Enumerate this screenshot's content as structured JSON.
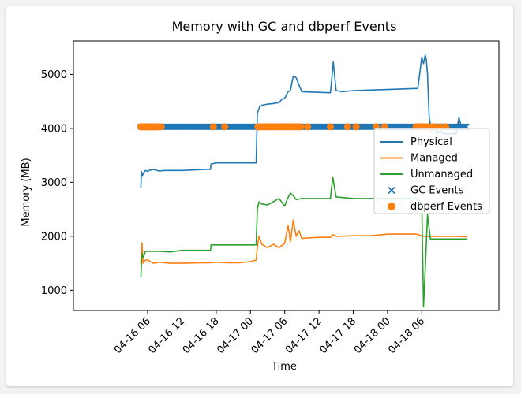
{
  "chart_data": {
    "type": "line",
    "title": "Memory with GC and dbperf Events",
    "xlabel": "Time",
    "ylabel": "Memory (MB)",
    "x_ticks": [
      "04-16 06",
      "04-16 12",
      "04-16 18",
      "04-17 00",
      "04-17 06",
      "04-17 12",
      "04-17 18",
      "04-18 00",
      "04-18 06"
    ],
    "y_ticks": [
      1000,
      2000,
      3000,
      4000,
      5000
    ],
    "xlim_hours": [
      -7.0,
      67.5
    ],
    "ylim": [
      625,
      5620
    ],
    "x_unit": "hours since 04-16 00",
    "legend_position": "center-right",
    "colors": {
      "Physical": "#1f77b4",
      "Managed": "#ff7f0e",
      "Unmanaged": "#2ca02c",
      "GC Events": "#1f77b4",
      "dbperf Events": "#ff7f0e"
    },
    "series": [
      {
        "name": "Physical",
        "x": [
          4.8,
          4.9,
          5.1,
          5.3,
          5.6,
          6.0,
          6.2,
          7.0,
          8.0,
          9.0,
          12.0,
          16.0,
          17.0,
          17.1,
          18.0,
          24.0,
          25.0,
          25.2,
          25.6,
          26.0,
          27.0,
          28.0,
          29.0,
          29.5,
          30.0,
          30.6,
          31.0,
          31.5,
          32.0,
          32.5,
          33.0,
          38.0,
          38.5,
          39.0,
          40.0,
          42.0,
          48.0,
          53.0,
          53.3,
          54.0,
          54.3,
          54.6,
          54.8,
          55.0,
          55.3,
          55.7,
          56.2,
          56.6,
          57.2,
          58.0,
          59.0,
          60.0,
          60.5,
          61.0,
          62.0
        ],
        "y": [
          2900,
          3200,
          3130,
          3180,
          3220,
          3200,
          3220,
          3240,
          3210,
          3220,
          3220,
          3240,
          3240,
          3340,
          3360,
          3360,
          3360,
          4280,
          4400,
          4430,
          4450,
          4460,
          4480,
          4540,
          4560,
          4680,
          4700,
          4970,
          4940,
          4800,
          4680,
          4660,
          5230,
          4700,
          4680,
          4700,
          4720,
          4740,
          4740,
          5320,
          5200,
          5360,
          5270,
          5000,
          4200,
          3950,
          4050,
          3900,
          3950,
          3900,
          3900,
          3900,
          4200,
          4000,
          4000
        ]
      },
      {
        "name": "Managed",
        "x": [
          4.8,
          5.0,
          5.2,
          5.6,
          6.0,
          7.0,
          8.0,
          10.0,
          12.0,
          16.0,
          17.0,
          18.0,
          20.0,
          22.0,
          24.0,
          25.0,
          25.2,
          25.5,
          26.0,
          27.0,
          28.0,
          29.0,
          30.0,
          30.6,
          31.0,
          31.5,
          32.0,
          32.5,
          33.0,
          34.0,
          36.0,
          38.0,
          38.4,
          39.0,
          42.0,
          45.0,
          48.0,
          53.0,
          54.0,
          54.4,
          55.0,
          56.0,
          58.0,
          60.0,
          62.0
        ],
        "y": [
          1480,
          1880,
          1500,
          1560,
          1560,
          1500,
          1520,
          1500,
          1500,
          1510,
          1510,
          1520,
          1510,
          1510,
          1530,
          1560,
          1800,
          2000,
          1850,
          1790,
          1850,
          1790,
          1870,
          2200,
          1900,
          2300,
          2000,
          2100,
          1960,
          1970,
          1980,
          1980,
          2030,
          2000,
          2010,
          2010,
          2040,
          2040,
          2010,
          2000,
          2000,
          2000,
          2000,
          2000,
          1990
        ]
      },
      {
        "name": "Unmanaged",
        "x": [
          4.8,
          5.0,
          5.2,
          5.6,
          6.0,
          7.0,
          8.0,
          10.0,
          12.0,
          16.0,
          17.0,
          17.1,
          18.0,
          20.0,
          22.0,
          24.0,
          25.0,
          25.2,
          25.5,
          26.0,
          27.0,
          28.0,
          29.0,
          30.0,
          30.5,
          31.0,
          31.5,
          32.0,
          33.0,
          38.0,
          38.4,
          39.0,
          42.0,
          48.0,
          53.0,
          54.0,
          54.3,
          54.6,
          55.0,
          55.5,
          56.0,
          57.0,
          58.0,
          60.0,
          62.0
        ],
        "y": [
          1240,
          1690,
          1600,
          1720,
          1720,
          1720,
          1720,
          1710,
          1740,
          1740,
          1740,
          1840,
          1840,
          1840,
          1840,
          1840,
          1840,
          2500,
          2640,
          2600,
          2580,
          2640,
          2700,
          2560,
          2700,
          2800,
          2750,
          2680,
          2700,
          2700,
          3100,
          2730,
          2700,
          2700,
          2700,
          2600,
          700,
          1400,
          2400,
          1950,
          1950,
          1950,
          1950,
          1950,
          1950
        ]
      }
    ],
    "events": [
      {
        "name": "GC Events",
        "marker": "x",
        "y": 4030,
        "x_range": [
          4.8,
          61.8
        ]
      },
      {
        "name": "dbperf Events",
        "marker": "circle",
        "y": 4030,
        "x": [
          4.8,
          5.0,
          5.2,
          5.4,
          5.6,
          5.8,
          6.0,
          6.2,
          6.4,
          6.6,
          6.8,
          7.0,
          7.2,
          7.4,
          7.6,
          8.0,
          8.4,
          17.5,
          19.5,
          25.3,
          25.6,
          26.0,
          26.4,
          26.8,
          27.2,
          27.6,
          28.0,
          28.4,
          28.8,
          29.2,
          29.6,
          30.0,
          30.4,
          30.8,
          31.2,
          31.6,
          32.0,
          32.4,
          32.8,
          34.0,
          38.0,
          41.0,
          42.5,
          46.0,
          47.5,
          53.0,
          53.4,
          53.8,
          54.2,
          54.6,
          55.0,
          55.6,
          56.2,
          57.2,
          58.2
        ]
      }
    ]
  }
}
